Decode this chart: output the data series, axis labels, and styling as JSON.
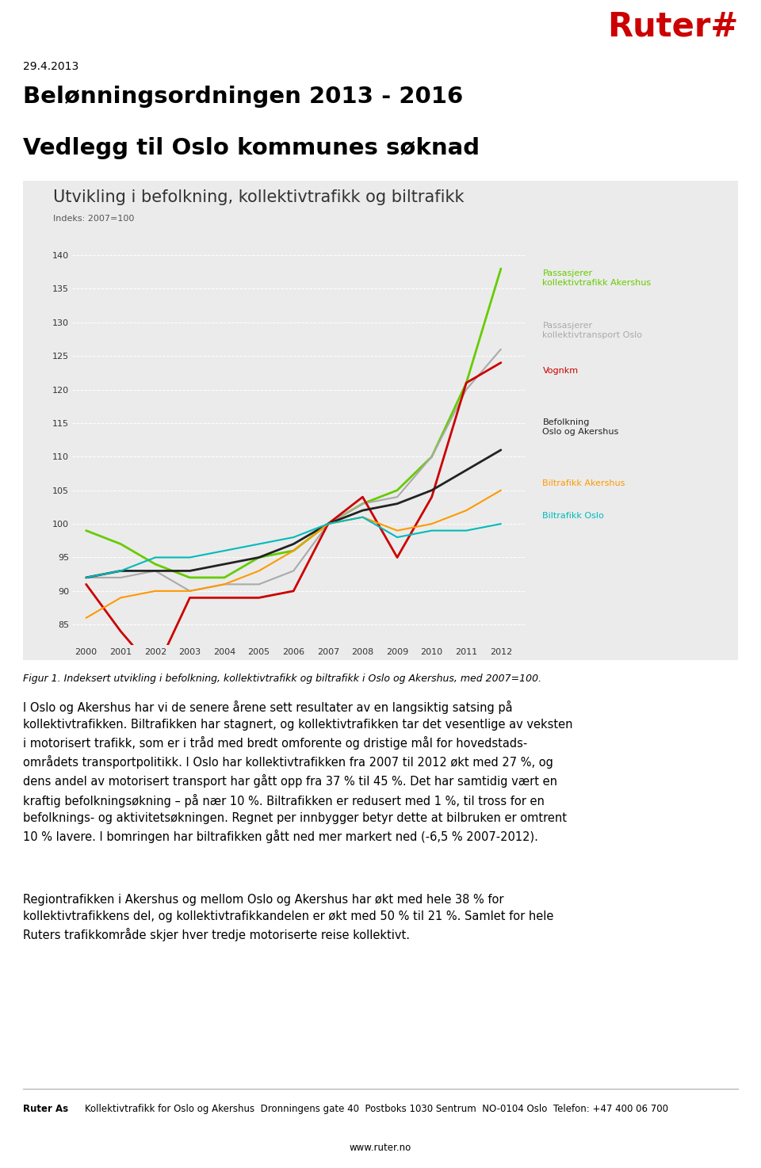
{
  "title": "Utvikling i befolkning, kollektivtrafikk og biltrafikk",
  "subtitle": "Indeks: 2007=100",
  "years": [
    2000,
    2001,
    2002,
    2003,
    2004,
    2005,
    2006,
    2007,
    2008,
    2009,
    2010,
    2011,
    2012
  ],
  "series": [
    {
      "name": "Passasjerer\nkollektivtrafikk Akershus",
      "color": "#66cc00",
      "lw": 2.0,
      "data": [
        99,
        97,
        94,
        92,
        92,
        95,
        96,
        100,
        103,
        105,
        110,
        121,
        138
      ]
    },
    {
      "name": "Passasjerer\nkollektivtransport Oslo",
      "color": "#aaaaaa",
      "lw": 1.5,
      "data": [
        92,
        92,
        93,
        90,
        91,
        91,
        93,
        100,
        103,
        104,
        110,
        120,
        126
      ]
    },
    {
      "name": "Vognkm",
      "color": "#cc0000",
      "lw": 2.0,
      "data": [
        91,
        84,
        78,
        89,
        89,
        89,
        90,
        100,
        104,
        95,
        104,
        121,
        124
      ]
    },
    {
      "name": "Befolkning\nOslo og Akershus",
      "color": "#222222",
      "lw": 2.0,
      "data": [
        92,
        93,
        93,
        93,
        94,
        95,
        97,
        100,
        102,
        103,
        105,
        108,
        111
      ]
    },
    {
      "name": "Biltrafikk Akershus",
      "color": "#ff9900",
      "lw": 1.5,
      "data": [
        86,
        89,
        90,
        90,
        91,
        93,
        96,
        100,
        101,
        99,
        100,
        102,
        105
      ]
    },
    {
      "name": "Biltrafikk Oslo",
      "color": "#00bbbb",
      "lw": 1.5,
      "data": [
        92,
        93,
        95,
        95,
        96,
        97,
        98,
        100,
        101,
        98,
        99,
        99,
        100
      ]
    }
  ],
  "ylim": [
    82,
    142
  ],
  "yticks": [
    85,
    90,
    95,
    100,
    105,
    110,
    115,
    120,
    125,
    130,
    135,
    140
  ],
  "chart_bg": "#ebebeb",
  "page_bg": "#ffffff",
  "date_text": "29.4.2013",
  "heading1": "Belønningsordningen 2013 - 2016",
  "heading2": "Vedlegg til Oslo kommunes søknad",
  "figure_caption": "Figur 1. Indeksert utvikling i befolkning, kollektivtrafikk og biltrafikk i Oslo og Akershus, med 2007=100.",
  "body_text1": "I Oslo og Akershus har vi de senere årene sett resultater av en langsiktig satsing på\nkollektivtrafikken. Biltrafikken har stagnert, og kollektivtrafikken tar det vesentlige av veksten\ni motorisert trafikk, som er i tråd med bredt omforente og dristige mål for hovedstads-\nområdets transportpolitikk. I Oslo har kollektivtrafikken fra 2007 til 2012 økt med 27 %, og\ndens andel av motorisert transport har gått opp fra 37 % til 45 %. Det har samtidig vært en\nkraftig befolkningsøkning – på nær 10 %. Biltrafikken er redusert med 1 %, til tross for en\nbefolknings- og aktivitetsøkningen. Regnet per innbygger betyr dette at bilbruken er omtrent\n10 % lavere. I bomringen har biltrafikken gått ned mer markert ned (-6,5 % 2007-2012).",
  "body_text2": "Regiontrafikken i Akershus og mellom Oslo og Akershus har økt med hele 38 % for\nkollektivtrafikkens del, og kollektivtrafikkandelen er økt med 50 % til 21 %. Samlet for hele\nRuters trafikkområde skjer hver tredje motoriserte reise kollektivt.",
  "footer_bold": "Ruter As",
  "footer_normal": "Kollektivtrafikk for Oslo og Akershus  Dronningens gate 40  Postboks 1030 Sentrum  NO-0104 Oslo  Telefon: +47 400 06 700",
  "footer_web": "www.ruter.no",
  "ruter_color": "#cc0000"
}
